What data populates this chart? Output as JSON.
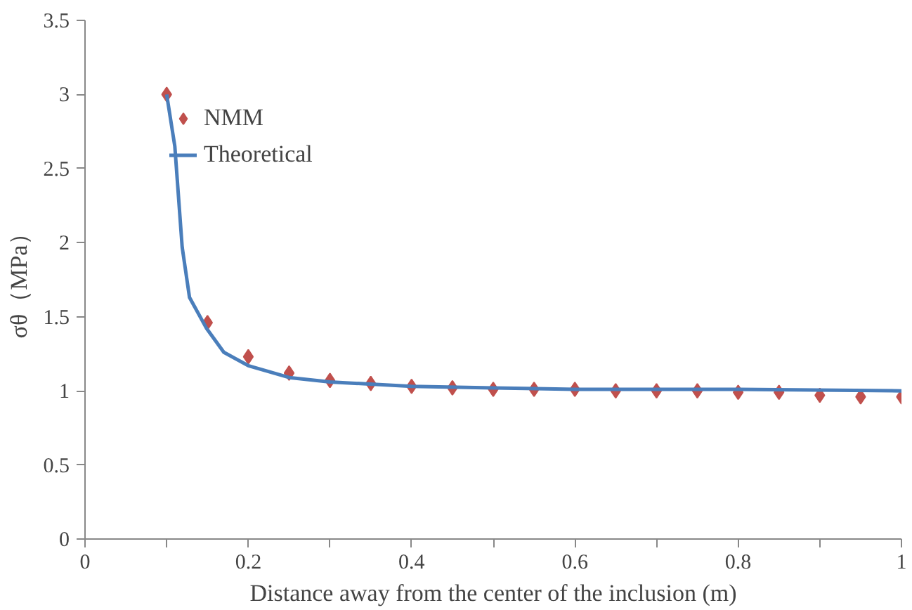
{
  "chart_data": {
    "type": "scatter",
    "xlabel": "Distance away from the center of the inclusion (m)",
    "ylabel": "σθ（MPa）",
    "xlim": [
      0,
      1
    ],
    "ylim": [
      0,
      3.5
    ],
    "xticks": [
      0,
      {
        "value": 0.1,
        "label": null
      },
      0.2,
      {
        "value": 0.3,
        "label": null
      },
      0.4,
      {
        "value": 0.5,
        "label": null
      },
      0.6,
      {
        "value": 0.7,
        "label": null
      },
      0.8,
      {
        "value": 0.9,
        "label": null
      },
      1
    ],
    "yticks": [
      0,
      0.5,
      1,
      1.5,
      2,
      2.5,
      3,
      3.5
    ],
    "grid": false,
    "legend": "top left",
    "series": [
      {
        "name": "NMM",
        "marker": "diamond",
        "color": "#c0504d",
        "x": [
          0.1,
          0.15,
          0.2,
          0.25,
          0.3,
          0.35,
          0.4,
          0.45,
          0.5,
          0.55,
          0.6,
          0.65,
          0.7,
          0.75,
          0.8,
          0.85,
          0.9,
          0.95,
          1.0
        ],
        "values": [
          3.0,
          1.46,
          1.23,
          1.12,
          1.07,
          1.05,
          1.03,
          1.02,
          1.01,
          1.01,
          1.01,
          1.0,
          1.0,
          1.0,
          0.99,
          0.99,
          0.97,
          0.96,
          0.96
        ]
      },
      {
        "name": "Theoretical",
        "type": "line",
        "color": "#4a7ebb",
        "x": [
          0.1,
          0.11,
          0.119,
          0.128,
          0.149,
          0.17,
          0.2,
          0.25,
          0.3,
          0.4,
          0.5,
          0.6,
          0.8,
          1.0
        ],
        "values": [
          3.0,
          2.65,
          1.97,
          1.63,
          1.42,
          1.26,
          1.17,
          1.09,
          1.06,
          1.03,
          1.02,
          1.01,
          1.01,
          1.0
        ]
      }
    ]
  }
}
